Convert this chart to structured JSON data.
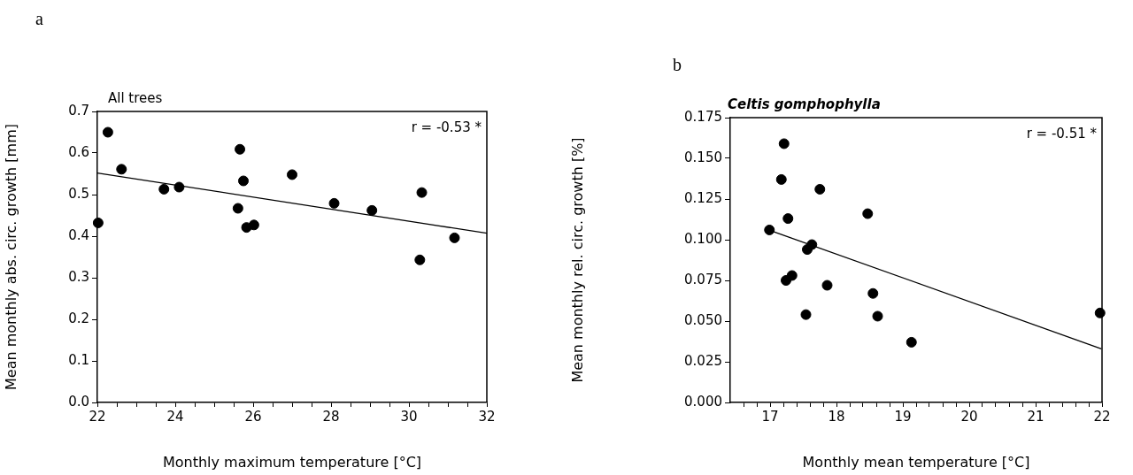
{
  "chart_data": [
    {
      "type": "scatter",
      "title": "a",
      "subtitle": "All trees",
      "xlabel": "Monthly maximum temperature [°C]",
      "ylabel": "Mean monthly abs. circ. growth [mm]",
      "annotations": [
        "r = -0.53 *"
      ],
      "marker": "circle",
      "grid": false,
      "legend": false,
      "x": [
        22.02,
        22.27,
        22.62,
        23.71,
        24.1,
        25.61,
        25.66,
        25.75,
        25.83,
        26.02,
        27.0,
        28.08,
        29.05,
        30.28,
        30.33,
        31.17
      ],
      "series": [
        {
          "color": "#000000",
          "values": [
            0.432,
            0.65,
            0.561,
            0.513,
            0.518,
            0.467,
            0.609,
            0.533,
            0.421,
            0.427,
            0.548,
            0.479,
            0.462,
            0.343,
            0.505,
            0.396
          ]
        },
        {
          "type": "line",
          "color": "#000000",
          "marker": "none",
          "x": [
            22,
            32
          ],
          "values": [
            0.552,
            0.407
          ]
        }
      ],
      "xlim": [
        22,
        32
      ],
      "xticks": [
        22,
        {
          "value": 22.5,
          "label": null
        },
        {
          "value": 23,
          "label": null
        },
        {
          "value": 23.5,
          "label": null
        },
        24,
        {
          "value": 24.5,
          "label": null
        },
        {
          "value": 25,
          "label": null
        },
        {
          "value": 25.5,
          "label": null
        },
        26,
        {
          "value": 26.5,
          "label": null
        },
        {
          "value": 27,
          "label": null
        },
        {
          "value": 27.5,
          "label": null
        },
        28,
        {
          "value": 28.5,
          "label": null
        },
        {
          "value": 29,
          "label": null
        },
        {
          "value": 29.5,
          "label": null
        },
        30,
        {
          "value": 30.5,
          "label": null
        },
        {
          "value": 31,
          "label": null
        },
        {
          "value": 31.5,
          "label": null
        },
        32
      ],
      "ylim": [
        0,
        0.7
      ],
      "yticks": [
        {
          "value": 0,
          "label": "0.0"
        },
        0.1,
        0.2,
        0.3,
        0.4,
        0.5,
        0.6,
        0.7
      ]
    },
    {
      "type": "scatter",
      "title": "b",
      "subtitle": "Celtis gomphophylla",
      "xlabel": "Monthly mean temperature [°C]",
      "ylabel": "Mean monthly rel. circ. growth [%]",
      "annotations": [
        "r = -0.51 *"
      ],
      "marker": "circle",
      "grid": false,
      "legend": false,
      "x": [
        16.99,
        17.17,
        17.21,
        17.24,
        17.27,
        17.33,
        17.54,
        17.56,
        17.63,
        17.75,
        17.86,
        18.47,
        18.55,
        18.62,
        19.13,
        21.97
      ],
      "series": [
        {
          "color": "#000000",
          "values": [
            0.106,
            0.137,
            0.159,
            0.075,
            0.113,
            0.078,
            0.054,
            0.094,
            0.097,
            0.131,
            0.072,
            0.116,
            0.067,
            0.053,
            0.037,
            0.055
          ]
        },
        {
          "type": "line",
          "color": "#000000",
          "marker": "none",
          "x": [
            17.05,
            21.99
          ],
          "values": [
            0.105,
            0.033
          ]
        }
      ],
      "xlim": [
        16.4,
        22
      ],
      "xticks": [
        {
          "value": 16.6,
          "label": null
        },
        {
          "value": 16.8,
          "label": null
        },
        17,
        {
          "value": 17.2,
          "label": null
        },
        {
          "value": 17.4,
          "label": null
        },
        {
          "value": 17.6,
          "label": null
        },
        {
          "value": 17.8,
          "label": null
        },
        18,
        {
          "value": 18.2,
          "label": null
        },
        {
          "value": 18.4,
          "label": null
        },
        {
          "value": 18.6,
          "label": null
        },
        {
          "value": 18.8,
          "label": null
        },
        19,
        {
          "value": 19.2,
          "label": null
        },
        {
          "value": 19.4,
          "label": null
        },
        {
          "value": 19.6,
          "label": null
        },
        {
          "value": 19.8,
          "label": null
        },
        20,
        {
          "value": 20.2,
          "label": null
        },
        {
          "value": 20.4,
          "label": null
        },
        {
          "value": 20.6,
          "label": null
        },
        {
          "value": 20.8,
          "label": null
        },
        21,
        {
          "value": 21.2,
          "label": null
        },
        {
          "value": 21.4,
          "label": null
        },
        {
          "value": 21.6,
          "label": null
        },
        {
          "value": 21.8,
          "label": null
        },
        22
      ],
      "ylim": [
        0,
        0.175
      ],
      "yticks": [
        {
          "value": 0,
          "label": "0.000"
        },
        {
          "value": 0.025,
          "label": "0.025"
        },
        {
          "value": 0.05,
          "label": "0.050"
        },
        {
          "value": 0.075,
          "label": "0.075"
        },
        {
          "value": 0.1,
          "label": "0.100"
        },
        {
          "value": 0.125,
          "label": "0.125"
        },
        {
          "value": 0.15,
          "label": "0.150"
        },
        {
          "value": 0.175,
          "label": "0.175"
        }
      ]
    }
  ]
}
